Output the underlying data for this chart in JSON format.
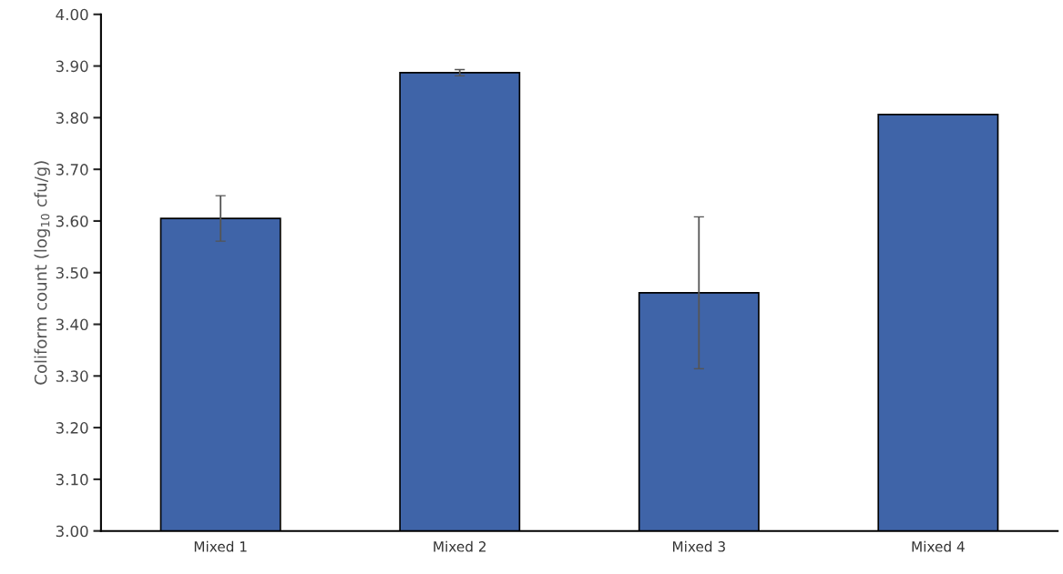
{
  "chart_data": {
    "type": "bar",
    "ylabel": "Coliform count (log$_{10}$ cfu/g)",
    "categories": [
      "Mixed 1",
      "Mixed 2",
      "Mixed 3",
      "Mixed 4"
    ],
    "values": [
      3.605,
      3.887,
      3.461,
      3.806
    ],
    "errors": [
      0.044,
      0.006,
      0.147,
      null
    ],
    "color": "#3f64a8",
    "ylim": [
      3.0,
      4.0
    ],
    "yticks": [
      {
        "value": 3.0,
        "label": "3.00"
      },
      {
        "value": 3.1,
        "label": "3.10"
      },
      {
        "value": 3.2,
        "label": "3.20"
      },
      {
        "value": 3.3,
        "label": "3.30"
      },
      {
        "value": 3.4,
        "label": "3.40"
      },
      {
        "value": 3.5,
        "label": "3.50"
      },
      {
        "value": 3.6,
        "label": "3.60"
      },
      {
        "value": 3.7,
        "label": "3.70"
      },
      {
        "value": 3.8,
        "label": "3.80"
      },
      {
        "value": 3.9,
        "label": "3.90"
      },
      {
        "value": 4.0,
        "label": "4.00"
      }
    ],
    "grid": false
  }
}
